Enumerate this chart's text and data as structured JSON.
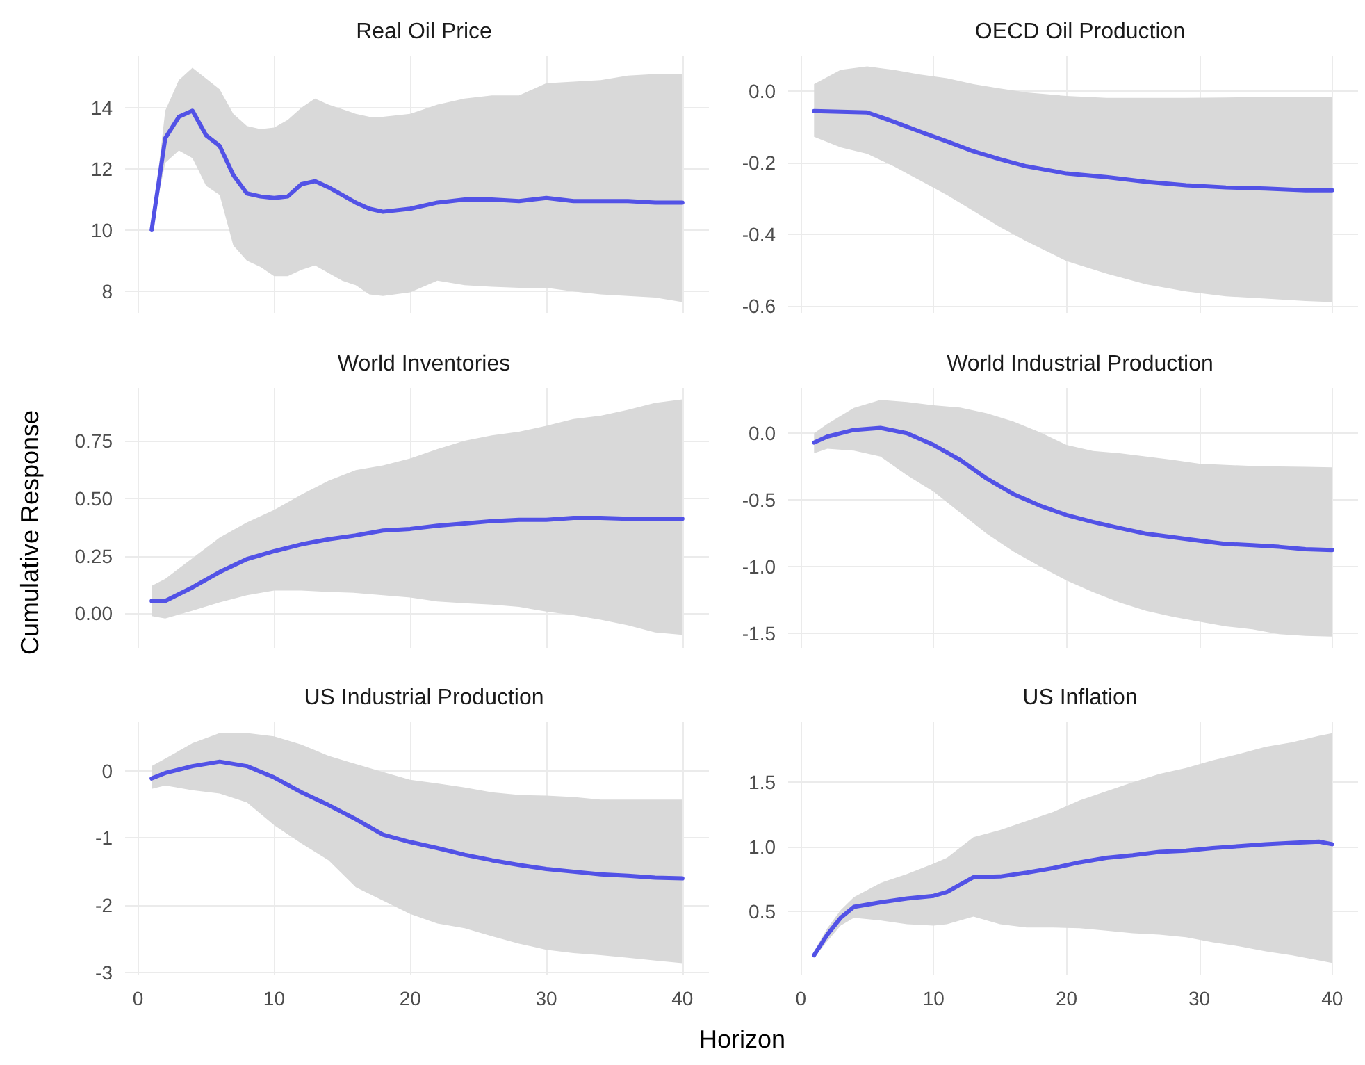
{
  "chart_data": [
    {
      "type": "line",
      "title": "Real Oil Price",
      "xlim": [
        -0.95,
        41.95
      ],
      "xticks": [
        0,
        10,
        20,
        30,
        40
      ],
      "ylim": [
        7.3,
        15.7
      ],
      "yticks": [
        8,
        10,
        12,
        14
      ],
      "grid": true,
      "tick_labels": "y",
      "marker": "none",
      "line_style": "solid",
      "series": [
        {
          "color": "#5252e6",
          "x": [
            1,
            2,
            3,
            4,
            5,
            6,
            7,
            8,
            9,
            10,
            11,
            12,
            13,
            14,
            15,
            16,
            17,
            18,
            20,
            22,
            24,
            26,
            28,
            30,
            32,
            34,
            36,
            38,
            40
          ],
          "values": [
            10.0,
            13.0,
            13.7,
            13.9,
            13.1,
            12.75,
            11.8,
            11.2,
            11.1,
            11.05,
            11.1,
            11.5,
            11.6,
            11.4,
            11.15,
            10.9,
            10.7,
            10.6,
            10.7,
            10.9,
            11.0,
            11.0,
            10.95,
            11.05,
            10.95,
            10.95,
            10.95,
            10.9,
            10.9
          ],
          "upper": [
            10.0,
            13.9,
            14.9,
            15.3,
            14.95,
            14.6,
            13.8,
            13.4,
            13.3,
            13.35,
            13.6,
            14.0,
            14.3,
            14.1,
            13.95,
            13.8,
            13.7,
            13.7,
            13.8,
            14.1,
            14.3,
            14.4,
            14.4,
            14.8,
            14.85,
            14.9,
            15.05,
            15.1,
            15.1
          ],
          "lower": [
            10.0,
            12.2,
            12.6,
            12.35,
            11.45,
            11.15,
            9.5,
            9.0,
            8.8,
            8.5,
            8.5,
            8.7,
            8.85,
            8.6,
            8.35,
            8.2,
            7.9,
            7.85,
            7.97,
            8.35,
            8.2,
            8.15,
            8.12,
            8.12,
            8.0,
            7.9,
            7.85,
            7.8,
            7.65
          ]
        }
      ]
    },
    {
      "type": "line",
      "title": "OECD Oil Production",
      "xlim": [
        -0.95,
        41.95
      ],
      "xticks": [
        0,
        10,
        20,
        30,
        40
      ],
      "ylim": [
        -0.62,
        0.1
      ],
      "yticks": [
        {
          "value": 0,
          "label": "0.0"
        },
        -0.2,
        -0.4,
        -0.6
      ],
      "grid": true,
      "tick_labels": "y",
      "marker": "none",
      "line_style": "solid",
      "series": [
        {
          "color": "#5252e6",
          "x": [
            1,
            3,
            5,
            7,
            9,
            11,
            13,
            15,
            17,
            20,
            23,
            26,
            29,
            32,
            35,
            38,
            40
          ],
          "values": [
            -0.055,
            -0.057,
            -0.059,
            -0.085,
            -0.113,
            -0.14,
            -0.168,
            -0.19,
            -0.21,
            -0.23,
            -0.24,
            -0.253,
            -0.263,
            -0.269,
            -0.272,
            -0.277,
            -0.277
          ],
          "upper": [
            0.02,
            0.06,
            0.07,
            0.06,
            0.047,
            0.037,
            0.02,
            0.008,
            -0.003,
            -0.013,
            -0.018,
            -0.018,
            -0.018,
            -0.017,
            -0.016,
            -0.016,
            -0.016
          ],
          "lower": [
            -0.127,
            -0.157,
            -0.175,
            -0.21,
            -0.25,
            -0.29,
            -0.335,
            -0.38,
            -0.42,
            -0.475,
            -0.51,
            -0.54,
            -0.56,
            -0.574,
            -0.58,
            -0.587,
            -0.59
          ]
        }
      ]
    },
    {
      "type": "line",
      "title": "World Inventories",
      "ylabel": "Cumulative Response",
      "xlim": [
        -0.95,
        41.95
      ],
      "xticks": [
        0,
        10,
        20,
        30,
        40
      ],
      "ylim": [
        -0.15,
        0.98
      ],
      "yticks": [
        {
          "value": 0,
          "label": "0.00"
        },
        0.25,
        {
          "value": 0.5,
          "label": "0.50"
        },
        0.75
      ],
      "grid": true,
      "tick_labels": "y",
      "marker": "none",
      "line_style": "solid",
      "series": [
        {
          "color": "#5252e6",
          "x": [
            1,
            2,
            4,
            6,
            8,
            10,
            12,
            14,
            16,
            18,
            20,
            22,
            24,
            26,
            28,
            30,
            32,
            34,
            36,
            38,
            40
          ],
          "values": [
            0.054,
            0.054,
            0.113,
            0.18,
            0.236,
            0.27,
            0.3,
            0.322,
            0.339,
            0.36,
            0.367,
            0.381,
            0.391,
            0.401,
            0.407,
            0.407,
            0.415,
            0.415,
            0.411,
            0.411,
            0.411
          ],
          "upper": [
            0.12,
            0.15,
            0.24,
            0.33,
            0.395,
            0.45,
            0.516,
            0.577,
            0.623,
            0.643,
            0.673,
            0.714,
            0.75,
            0.774,
            0.79,
            0.815,
            0.845,
            0.859,
            0.885,
            0.915,
            0.93
          ],
          "lower": [
            -0.012,
            -0.022,
            0.012,
            0.048,
            0.079,
            0.099,
            0.099,
            0.093,
            0.089,
            0.079,
            0.069,
            0.052,
            0.044,
            0.038,
            0.028,
            0.008,
            -0.008,
            -0.028,
            -0.052,
            -0.083,
            -0.093
          ]
        }
      ]
    },
    {
      "type": "line",
      "title": "World Industrial Production",
      "xlim": [
        -0.95,
        41.95
      ],
      "xticks": [
        0,
        10,
        20,
        30,
        40
      ],
      "ylim": [
        -1.61,
        0.34
      ],
      "yticks": [
        {
          "value": 0,
          "label": "0.0"
        },
        -0.5,
        {
          "value": -1,
          "label": "-1.0"
        },
        -1.5
      ],
      "grid": true,
      "tick_labels": "y",
      "marker": "none",
      "line_style": "solid",
      "series": [
        {
          "color": "#5252e6",
          "x": [
            1,
            2,
            4,
            6,
            8,
            10,
            12,
            14,
            16,
            18,
            20,
            22,
            24,
            26,
            28,
            30,
            32,
            34,
            36,
            38,
            40
          ],
          "values": [
            -0.07,
            -0.025,
            0.025,
            0.04,
            0.0,
            -0.088,
            -0.2,
            -0.34,
            -0.456,
            -0.543,
            -0.613,
            -0.666,
            -0.711,
            -0.754,
            -0.78,
            -0.806,
            -0.83,
            -0.84,
            -0.852,
            -0.87,
            -0.876
          ],
          "upper": [
            0.0,
            0.07,
            0.19,
            0.25,
            0.235,
            0.21,
            0.193,
            0.15,
            0.088,
            0.007,
            -0.088,
            -0.133,
            -0.15,
            -0.175,
            -0.2,
            -0.228,
            -0.238,
            -0.245,
            -0.249,
            -0.252,
            -0.256
          ],
          "lower": [
            -0.15,
            -0.116,
            -0.13,
            -0.175,
            -0.315,
            -0.438,
            -0.596,
            -0.754,
            -0.887,
            -0.999,
            -1.104,
            -1.192,
            -1.27,
            -1.332,
            -1.377,
            -1.413,
            -1.448,
            -1.47,
            -1.507,
            -1.52,
            -1.525
          ]
        }
      ]
    },
    {
      "type": "line",
      "title": "US Industrial Production",
      "xlabel": "Horizon",
      "xlim": [
        -0.95,
        41.95
      ],
      "xticks": [
        0,
        10,
        20,
        30,
        40
      ],
      "ylim": [
        -3.03,
        0.73
      ],
      "yticks": [
        0,
        -1,
        -2,
        -3
      ],
      "grid": true,
      "marker": "none",
      "line_style": "solid",
      "series": [
        {
          "color": "#5252e6",
          "x": [
            1,
            2,
            4,
            6,
            8,
            10,
            12,
            14,
            16,
            18,
            20,
            22,
            24,
            26,
            28,
            30,
            32,
            34,
            36,
            38,
            40
          ],
          "values": [
            -0.115,
            -0.034,
            0.068,
            0.135,
            0.068,
            -0.1,
            -0.32,
            -0.51,
            -0.72,
            -0.95,
            -1.06,
            -1.15,
            -1.25,
            -1.33,
            -1.4,
            -1.46,
            -1.5,
            -1.54,
            -1.56,
            -1.59,
            -1.6
          ],
          "upper": [
            0.07,
            0.18,
            0.41,
            0.56,
            0.56,
            0.51,
            0.39,
            0.22,
            0.1,
            -0.02,
            -0.135,
            -0.19,
            -0.25,
            -0.32,
            -0.36,
            -0.37,
            -0.39,
            -0.43,
            -0.43,
            -0.43,
            -0.43
          ],
          "lower": [
            -0.27,
            -0.22,
            -0.29,
            -0.34,
            -0.47,
            -0.81,
            -1.08,
            -1.33,
            -1.73,
            -1.93,
            -2.13,
            -2.27,
            -2.34,
            -2.46,
            -2.57,
            -2.66,
            -2.71,
            -2.74,
            -2.78,
            -2.82,
            -2.86
          ]
        }
      ]
    },
    {
      "type": "line",
      "title": "US Inflation",
      "xlim": [
        -0.95,
        41.95
      ],
      "xticks": [
        0,
        10,
        20,
        30,
        40
      ],
      "ylim": [
        0.01,
        1.97
      ],
      "yticks": [
        0.5,
        {
          "value": 1,
          "label": "1.0"
        },
        1.5
      ],
      "grid": true,
      "marker": "none",
      "line_style": "solid",
      "series": [
        {
          "color": "#5252e6",
          "x": [
            1,
            2,
            3,
            4,
            6,
            8,
            10,
            11,
            13,
            15,
            17,
            19,
            21,
            23,
            25,
            27,
            29,
            31,
            33,
            35,
            37,
            39,
            40
          ],
          "values": [
            0.16,
            0.32,
            0.45,
            0.535,
            0.57,
            0.6,
            0.62,
            0.65,
            0.765,
            0.77,
            0.8,
            0.835,
            0.88,
            0.915,
            0.935,
            0.96,
            0.97,
            0.99,
            1.005,
            1.02,
            1.03,
            1.04,
            1.02
          ],
          "upper": [
            0.19,
            0.37,
            0.51,
            0.61,
            0.72,
            0.79,
            0.87,
            0.915,
            1.075,
            1.13,
            1.2,
            1.27,
            1.36,
            1.43,
            1.5,
            1.565,
            1.61,
            1.67,
            1.72,
            1.775,
            1.81,
            1.86,
            1.88
          ],
          "lower": [
            0.14,
            0.27,
            0.39,
            0.45,
            0.43,
            0.4,
            0.39,
            0.4,
            0.46,
            0.4,
            0.375,
            0.375,
            0.37,
            0.35,
            0.33,
            0.32,
            0.3,
            0.26,
            0.23,
            0.19,
            0.16,
            0.12,
            0.1
          ]
        }
      ]
    }
  ]
}
